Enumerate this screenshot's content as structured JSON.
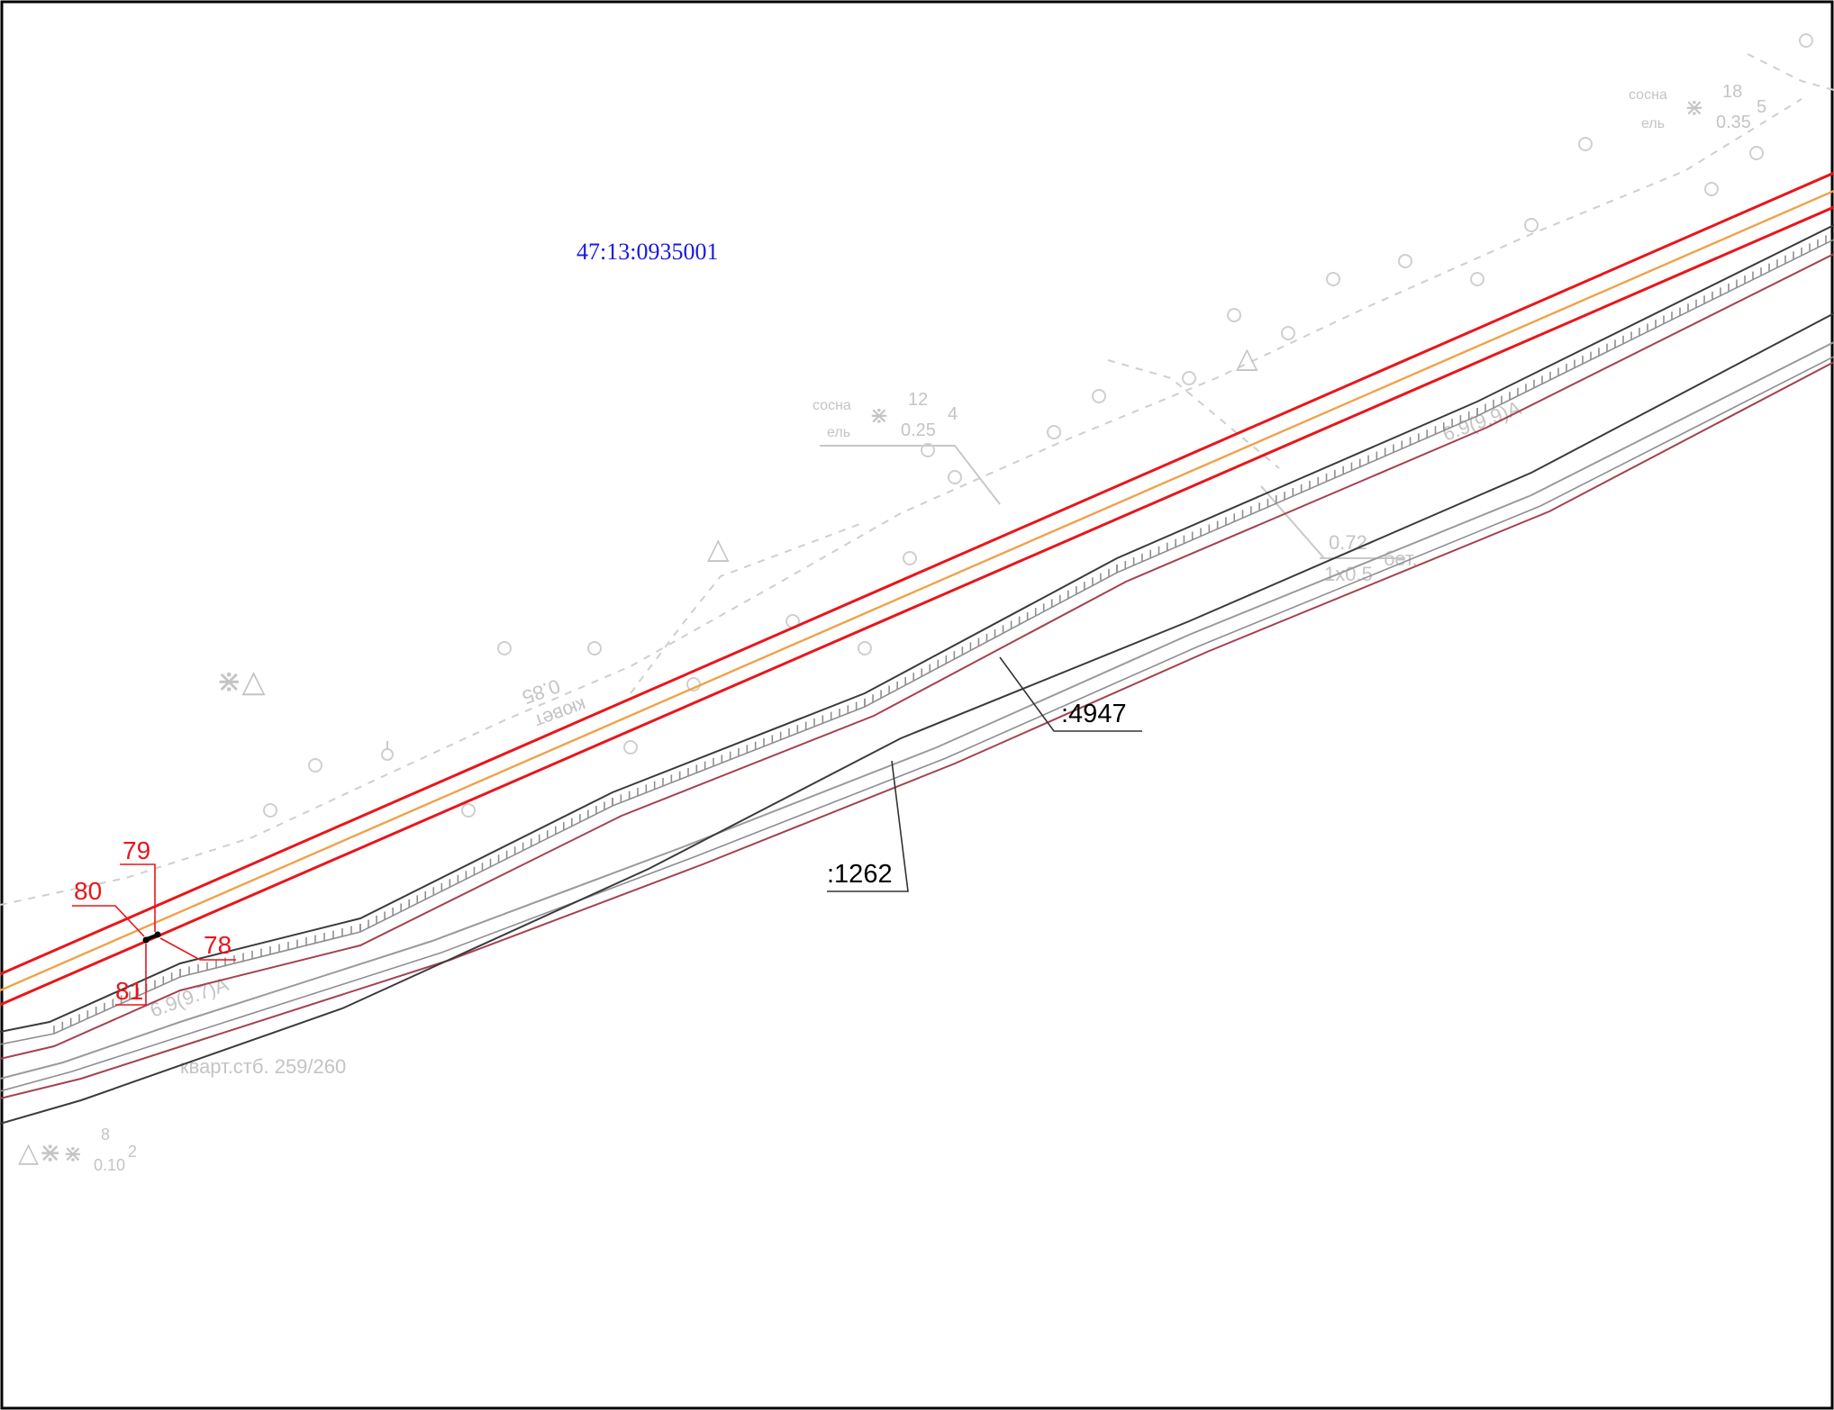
{
  "map": {
    "parcel_id": "47:13:0935001",
    "cadastral_labels": [
      ":4947",
      ":1262"
    ],
    "point_numbers": [
      "79",
      "80",
      "78",
      "81"
    ],
    "background_labels": {
      "tree_note_top": [
        "сосна",
        "ель",
        "18",
        "0.35",
        "5"
      ],
      "tree_note_mid": [
        "сосна",
        "ель",
        "12",
        "0.25",
        "4"
      ],
      "tree_note_bottom": [
        "8",
        "0.10",
        "2"
      ],
      "road_note": [
        "6.9(9.9)А"
      ],
      "road_note_2": [
        "6.9(9.7)А"
      ],
      "ditch_note": [
        "кювет",
        "0.85"
      ],
      "culvert_note": [
        "0.72",
        "1х0.5",
        "бет."
      ],
      "quarter_note": [
        "кварт.стб. 259/260"
      ]
    },
    "colors": {
      "boundary_red": "#e8161b",
      "axis_orange": "#f0a24a",
      "road_edge": "#3b3b3b",
      "road_brown": "#a4424f",
      "parcel_label_blue": "#1a1ae0",
      "background_gray": "#c4c4c4"
    },
    "icons": [
      "tree-icon",
      "conifer-icon",
      "post-icon"
    ]
  }
}
